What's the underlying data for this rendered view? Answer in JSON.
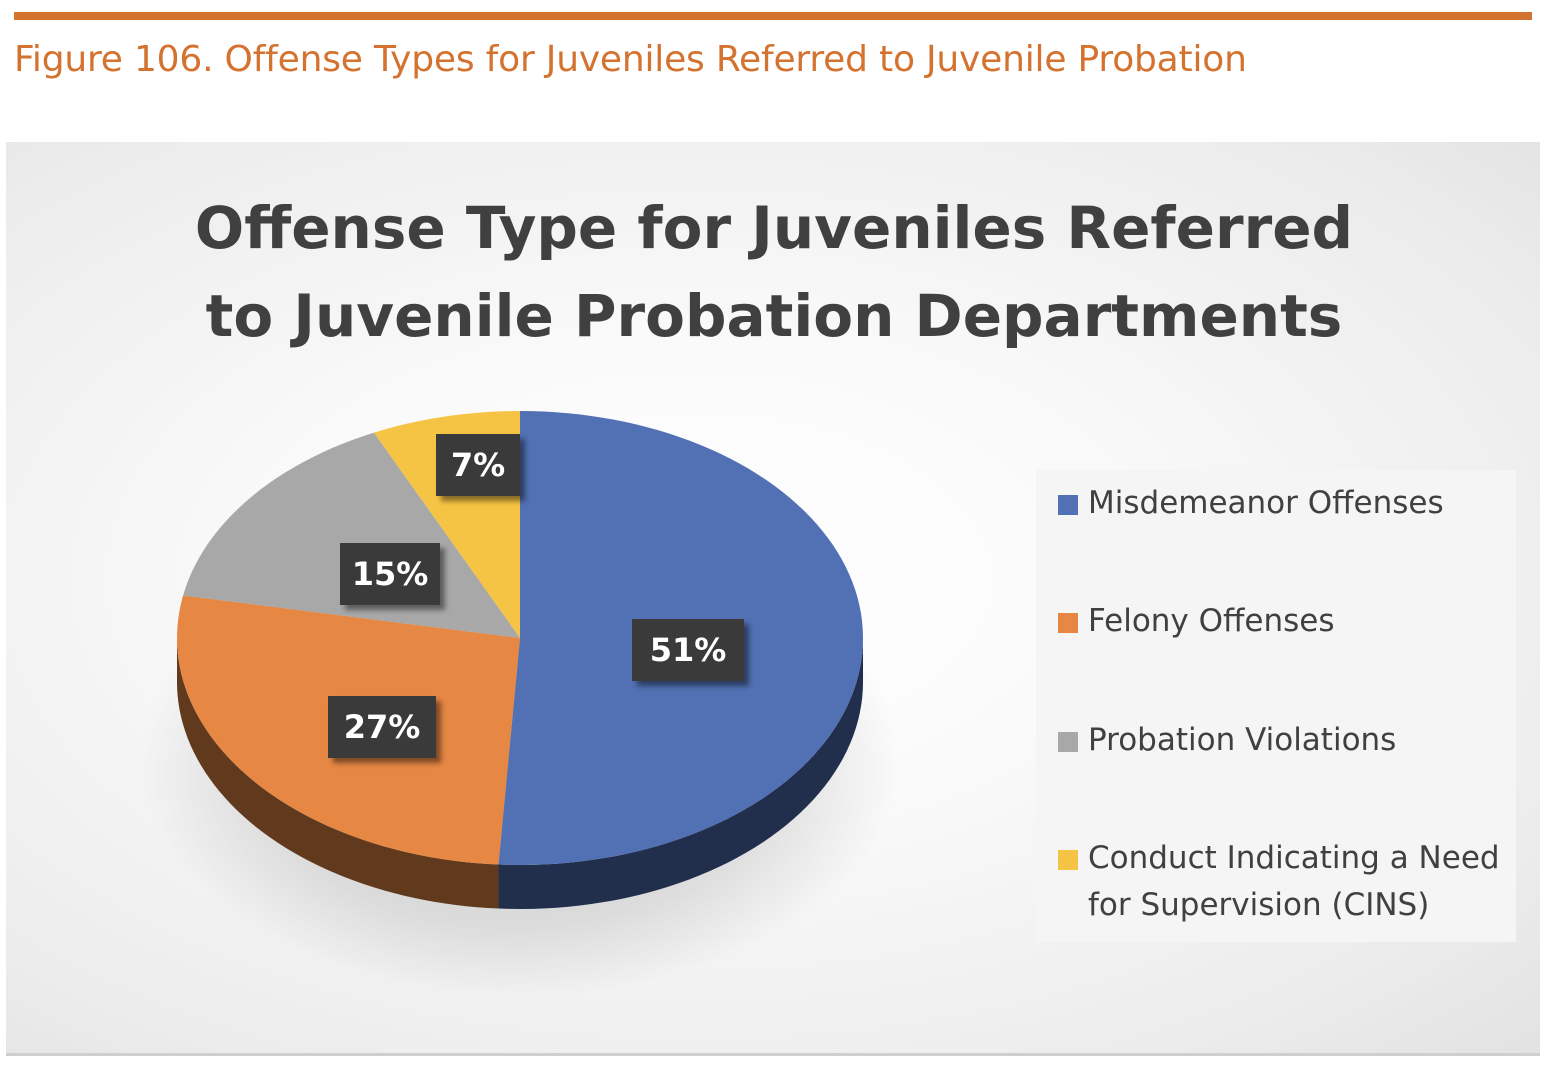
{
  "caption": "Figure 106. Offense Types for Juveniles Referred to Juvenile Probation",
  "colors": {
    "accent": "#D4722F",
    "title_text": "#404040",
    "misdemeanor": "#5171B4",
    "felony": "#E68744",
    "probation": "#A8A8A8",
    "cins": "#F6C444"
  },
  "chart_data": {
    "type": "pie",
    "title_line1": "Offense Type for Juveniles Referred",
    "title_line2": "to Juvenile Probation Departments",
    "categories": [
      "Misdemeanor Offenses",
      "Felony Offenses",
      "Probation Violations",
      "Conduct Indicating a Need for Supervision (CINS)"
    ],
    "values": [
      51,
      27,
      15,
      7
    ],
    "data_labels": [
      "51%",
      "27%",
      "15%",
      "7%"
    ],
    "legend_placement": "right",
    "style": "3d"
  },
  "legend": {
    "items": [
      {
        "lines": [
          "Misdemeanor Offenses"
        ]
      },
      {
        "lines": [
          "Felony Offenses"
        ]
      },
      {
        "lines": [
          "Probation Violations"
        ]
      },
      {
        "lines": [
          "Conduct Indicating a Need",
          "for Supervision (CINS)"
        ]
      }
    ]
  }
}
